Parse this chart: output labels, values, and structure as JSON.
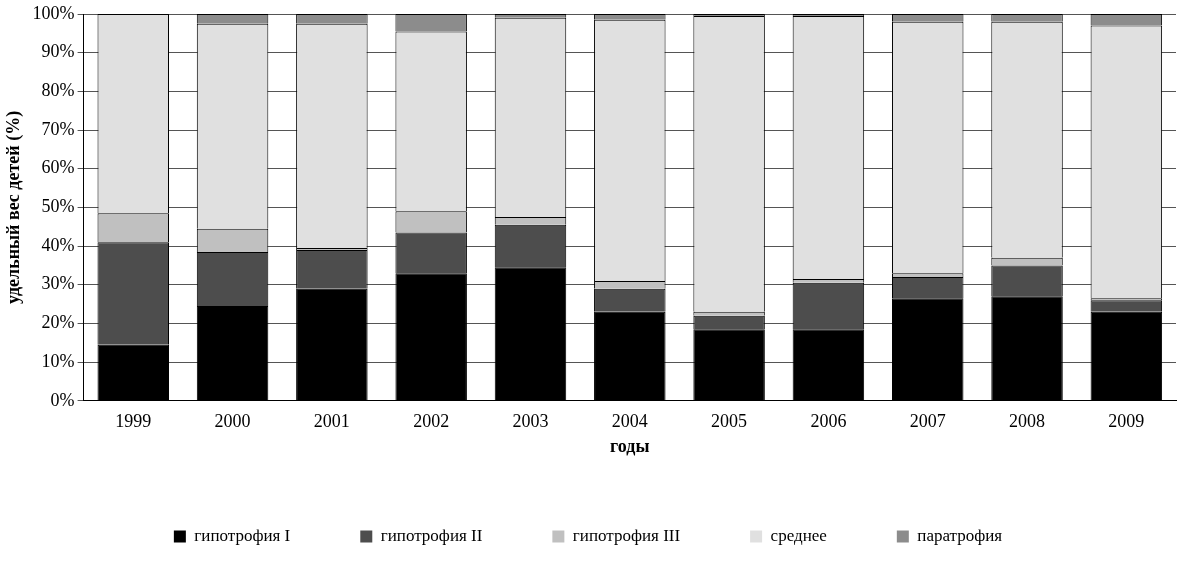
{
  "chart_data": {
    "type": "bar",
    "stacked": true,
    "xlabel": "годы",
    "ylabel": "удельный вес детей (%)",
    "categories": [
      "1999",
      "2000",
      "2001",
      "2002",
      "2003",
      "2004",
      "2005",
      "2006",
      "2007",
      "2008",
      "2009"
    ],
    "series": [
      {
        "name": "гипотрофия I",
        "color": "#000000",
        "values": [
          14.5,
          24.5,
          29,
          33,
          34.5,
          23,
          18.5,
          18.5,
          26.5,
          27,
          23
        ]
      },
      {
        "name": "гипотрофия II",
        "color": "#4d4d4d",
        "values": [
          26.5,
          14,
          10,
          10.5,
          11,
          6,
          3.5,
          12,
          5.5,
          8,
          3
        ]
      },
      {
        "name": "гипотрофия III",
        "color": "#c0c0c0",
        "values": [
          7.5,
          6,
          0.5,
          5.5,
          2,
          2,
          1,
          1,
          1,
          2,
          0.5
        ]
      },
      {
        "name": "среднее",
        "color": "#e0e0e0",
        "values": [
          51.5,
          53,
          58,
          46.5,
          51.5,
          67.5,
          76.5,
          68,
          65,
          61,
          70.5
        ]
      },
      {
        "name": "паратрофия",
        "color": "#8c8c8c",
        "values": [
          0,
          2.5,
          2.5,
          4.5,
          1,
          1.5,
          0.5,
          0.5,
          2,
          2,
          3
        ]
      }
    ],
    "ylim": [
      0,
      100
    ],
    "yticks": [
      {
        "value": 0,
        "label": "0%"
      },
      {
        "value": 10,
        "label": "10%"
      },
      {
        "value": 20,
        "label": "20%"
      },
      {
        "value": 30,
        "label": "30%"
      },
      {
        "value": 40,
        "label": "40%"
      },
      {
        "value": 50,
        "label": "50%"
      },
      {
        "value": 60,
        "label": "60%"
      },
      {
        "value": 70,
        "label": "70%"
      },
      {
        "value": 80,
        "label": "80%"
      },
      {
        "value": 90,
        "label": "90%"
      },
      {
        "value": 100,
        "label": "100%"
      }
    ],
    "grid": "y",
    "legend": "bottom"
  }
}
